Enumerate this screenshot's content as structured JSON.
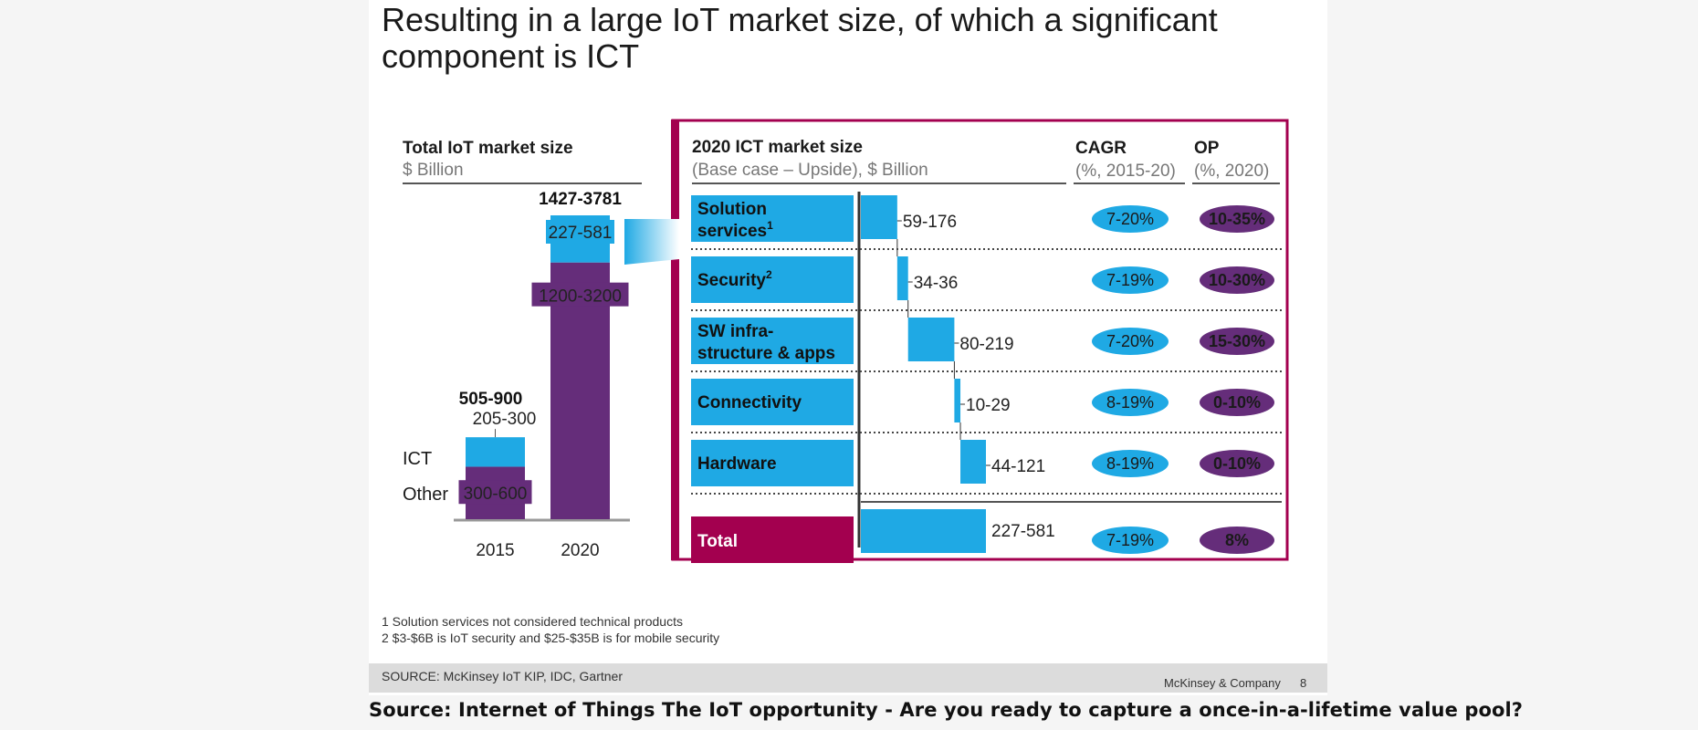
{
  "slide": {
    "title_line1": "Resulting in a large IoT market size, of which a significant",
    "title_line2": "component is ICT",
    "page_number": "8",
    "company": "McKinsey & Company",
    "source": "SOURCE: McKinsey IoT KIP, IDC, Gartner",
    "footnote1": "1 Solution services not considered technical products",
    "footnote2": "2 $3-$6B is IoT security and $25-$35B is for mobile security"
  },
  "caption": "Source: Internet of Things The IoT opportunity - Are you ready to capture a once-in-a-lifetime value pool?",
  "colors": {
    "purple": "#652d7a",
    "blue": "#1fa9e4",
    "magenta": "#a3004f",
    "dark": "#333333"
  },
  "chart_data": [
    {
      "type": "bar",
      "title": "Total IoT market size",
      "subtitle": "$ Billion",
      "categories": [
        "2015",
        "2020"
      ],
      "series": [
        {
          "name": "Other",
          "values": [
            450,
            2200
          ],
          "labels": [
            "300-600",
            "1200-3200"
          ]
        },
        {
          "name": "ICT",
          "values": [
            252.5,
            404
          ],
          "labels": [
            "205-300",
            "227-581"
          ]
        }
      ],
      "totals": [
        "505-900",
        "1427-3781"
      ],
      "ylim": [
        0,
        2604
      ]
    },
    {
      "type": "bar",
      "orientation": "horizontal-waterfall",
      "title": "2020 ICT market size",
      "subtitle": "(Base case – Upside), $ Billion",
      "cagr_header": "CAGR",
      "cagr_sub": "(%, 2015-20)",
      "op_header": "OP",
      "op_sub": "(%, 2020)",
      "rows": [
        {
          "name": "Solution",
          "name2": "services",
          "sup": "1",
          "range": "59-176",
          "start": 0,
          "value": 117.5,
          "cagr": "7-20%",
          "op": "10-35%"
        },
        {
          "name": "Security",
          "name2": "",
          "sup": "2",
          "range": "34-36",
          "start": 117.5,
          "value": 35,
          "cagr": "7-19%",
          "op": "10-30%"
        },
        {
          "name": "SW infra-",
          "name2": "structure & apps",
          "sup": "",
          "range": "80-219",
          "start": 152.5,
          "value": 149.5,
          "cagr": "7-20%",
          "op": "15-30%"
        },
        {
          "name": "Connectivity",
          "name2": "",
          "sup": "",
          "range": "10-29",
          "start": 302,
          "value": 19.5,
          "cagr": "8-19%",
          "op": "0-10%"
        },
        {
          "name": "Hardware",
          "name2": "",
          "sup": "",
          "range": "44-121",
          "start": 321.5,
          "value": 82.5,
          "cagr": "8-19%",
          "op": "0-10%"
        }
      ],
      "total": {
        "name": "Total",
        "range": "227-581",
        "start": 0,
        "value": 404,
        "cagr": "7-19%",
        "op": "8%"
      },
      "xlim": [
        0,
        404
      ]
    }
  ]
}
